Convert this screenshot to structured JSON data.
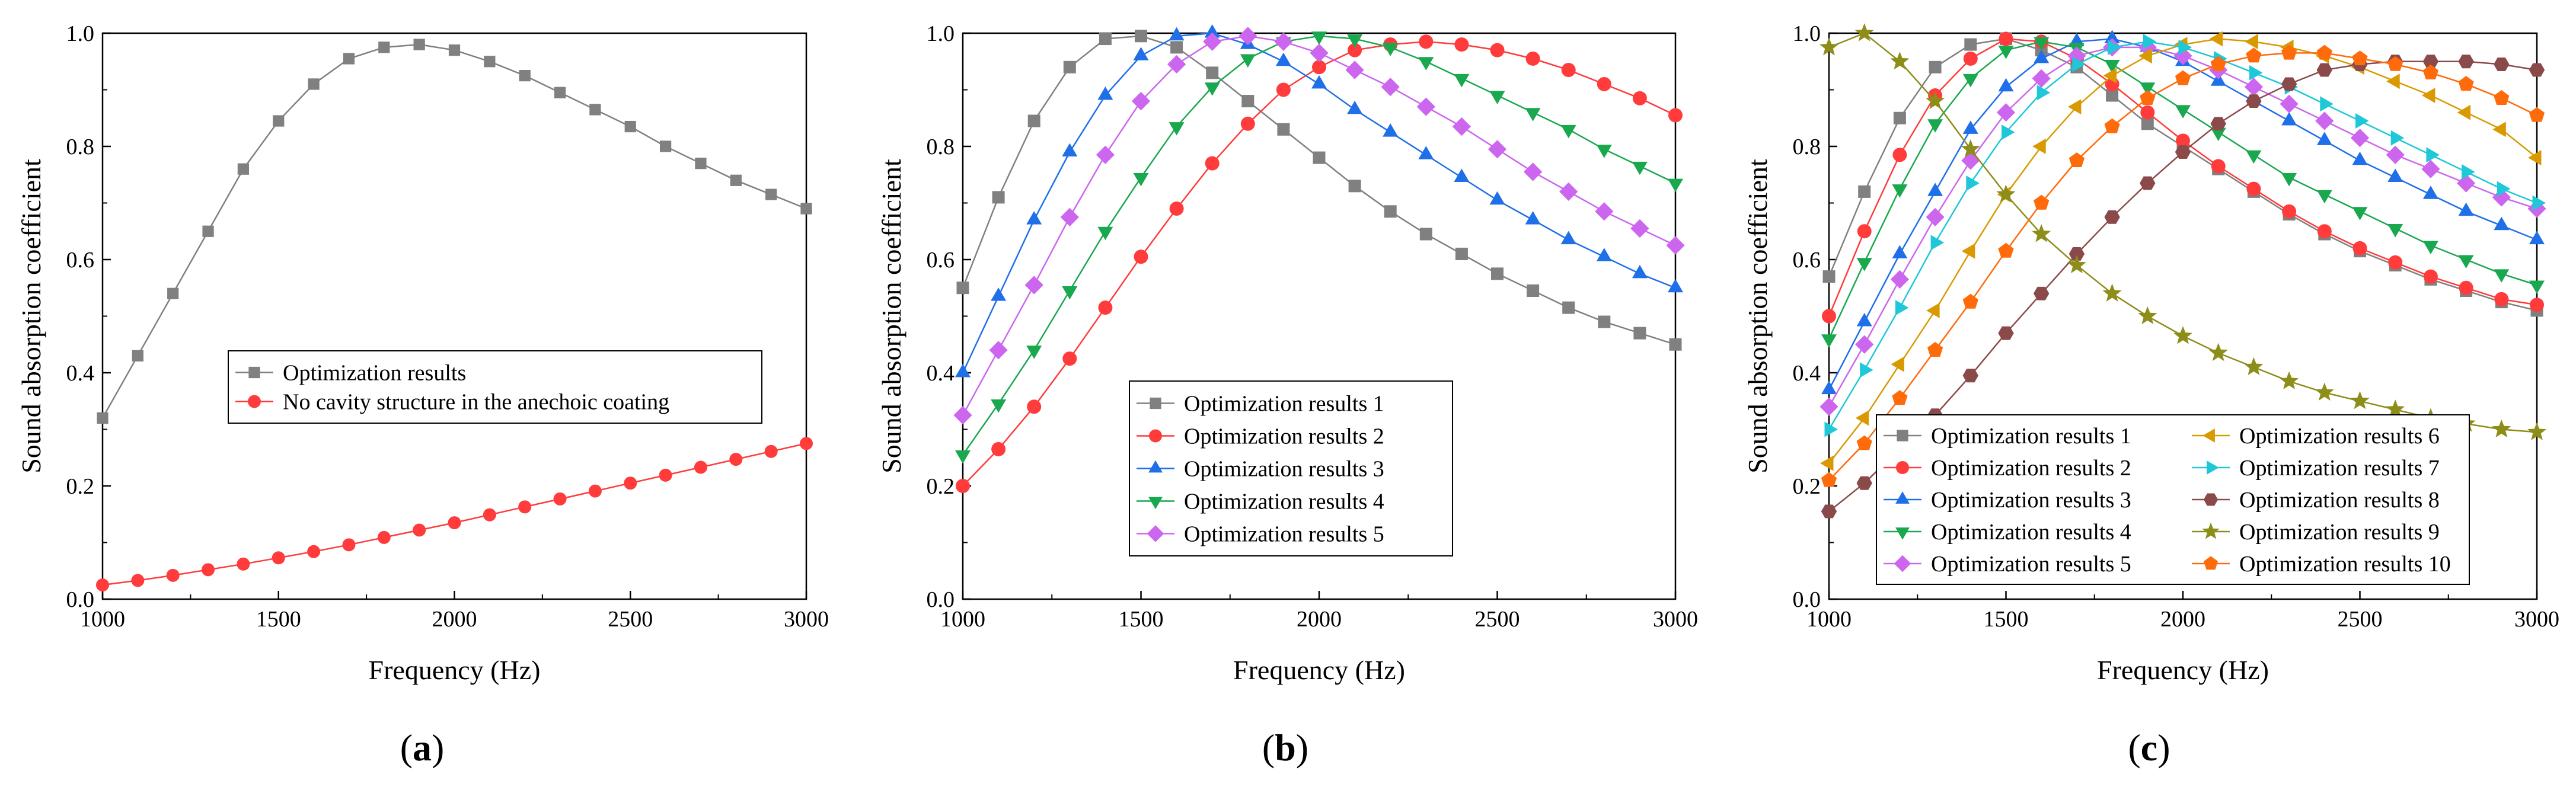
{
  "chart_data": [
    {
      "type": "line",
      "caption": "a",
      "xlabel": "Frequency (Hz)",
      "ylabel": "Sound absorption coefficient",
      "xlim": [
        1000,
        3000
      ],
      "ylim": [
        0.0,
        1.0
      ],
      "xticks": [
        "1000",
        "1500",
        "2000",
        "2500",
        "3000"
      ],
      "yticks": [
        "0.0",
        "0.2",
        "0.4",
        "0.6",
        "0.8",
        "1.0"
      ],
      "legend_position": "center",
      "x": [
        1000,
        1100,
        1200,
        1300,
        1400,
        1500,
        1600,
        1700,
        1800,
        1900,
        2000,
        2100,
        2200,
        2300,
        2400,
        2500,
        2600,
        2700,
        2800,
        2900,
        3000
      ],
      "series": [
        {
          "name": "Optimization results",
          "color": "#808080",
          "marker": "square",
          "values": [
            0.32,
            0.43,
            0.54,
            0.65,
            0.76,
            0.845,
            0.91,
            0.955,
            0.975,
            0.98,
            0.97,
            0.95,
            0.925,
            0.895,
            0.865,
            0.835,
            0.8,
            0.77,
            0.74,
            0.715,
            0.69
          ]
        },
        {
          "name": "No cavity structure in the anechoic coating",
          "color": "#ff3b3b",
          "marker": "circle",
          "values": [
            0.025,
            0.033,
            0.042,
            0.052,
            0.062,
            0.073,
            0.084,
            0.096,
            0.109,
            0.122,
            0.135,
            0.149,
            0.163,
            0.177,
            0.191,
            0.205,
            0.219,
            0.233,
            0.247,
            0.261,
            0.275
          ]
        }
      ]
    },
    {
      "type": "line",
      "caption": "b",
      "xlabel": "Frequency (Hz)",
      "ylabel": "Sound absorption coefficient",
      "xlim": [
        1000,
        3000
      ],
      "ylim": [
        0.0,
        1.0
      ],
      "xticks": [
        "1000",
        "1500",
        "2000",
        "2500",
        "3000"
      ],
      "yticks": [
        "0.0",
        "0.2",
        "0.4",
        "0.6",
        "0.8",
        "1.0"
      ],
      "legend_position": "lower-left",
      "x": [
        1000,
        1100,
        1200,
        1300,
        1400,
        1500,
        1600,
        1700,
        1800,
        1900,
        2000,
        2100,
        2200,
        2300,
        2400,
        2500,
        2600,
        2700,
        2800,
        2900,
        3000
      ],
      "series": [
        {
          "name": "Optimization results 1",
          "color": "#808080",
          "marker": "square",
          "values": [
            0.55,
            0.71,
            0.845,
            0.94,
            0.99,
            0.995,
            0.975,
            0.93,
            0.88,
            0.83,
            0.78,
            0.73,
            0.685,
            0.645,
            0.61,
            0.575,
            0.545,
            0.515,
            0.49,
            0.47,
            0.45
          ]
        },
        {
          "name": "Optimization results 2",
          "color": "#ff3b3b",
          "marker": "circle",
          "values": [
            0.2,
            0.265,
            0.34,
            0.425,
            0.515,
            0.605,
            0.69,
            0.77,
            0.84,
            0.9,
            0.94,
            0.97,
            0.98,
            0.985,
            0.98,
            0.97,
            0.955,
            0.935,
            0.91,
            0.885,
            0.855
          ]
        },
        {
          "name": "Optimization results 3",
          "color": "#1f6fe8",
          "marker": "triangle-up",
          "values": [
            0.4,
            0.535,
            0.67,
            0.79,
            0.89,
            0.96,
            0.995,
            1.0,
            0.98,
            0.95,
            0.91,
            0.865,
            0.825,
            0.785,
            0.745,
            0.705,
            0.67,
            0.635,
            0.605,
            0.575,
            0.55
          ]
        },
        {
          "name": "Optimization results 4",
          "color": "#1aa84f",
          "marker": "triangle-down",
          "values": [
            0.255,
            0.345,
            0.44,
            0.545,
            0.65,
            0.745,
            0.835,
            0.905,
            0.955,
            0.985,
            0.995,
            0.99,
            0.975,
            0.95,
            0.92,
            0.89,
            0.86,
            0.83,
            0.795,
            0.765,
            0.735
          ]
        },
        {
          "name": "Optimization results 5",
          "color": "#cc66ee",
          "marker": "diamond",
          "values": [
            0.325,
            0.44,
            0.555,
            0.675,
            0.785,
            0.88,
            0.945,
            0.985,
            0.995,
            0.985,
            0.965,
            0.935,
            0.905,
            0.87,
            0.835,
            0.795,
            0.755,
            0.72,
            0.685,
            0.655,
            0.625
          ]
        }
      ]
    },
    {
      "type": "line",
      "caption": "c",
      "xlabel": "Frequency (Hz)",
      "ylabel": "Sound absorption coefficient",
      "xlim": [
        1000,
        3000
      ],
      "ylim": [
        0.0,
        1.0
      ],
      "xticks": [
        "1000",
        "1500",
        "2000",
        "2500",
        "3000"
      ],
      "yticks": [
        "0.0",
        "0.2",
        "0.4",
        "0.6",
        "0.8",
        "1.0"
      ],
      "legend_position": "bottom",
      "legend_columns": 2,
      "x": [
        1000,
        1100,
        1200,
        1300,
        1400,
        1500,
        1600,
        1700,
        1800,
        1900,
        2000,
        2100,
        2200,
        2300,
        2400,
        2500,
        2600,
        2700,
        2800,
        2900,
        3000
      ],
      "series": [
        {
          "name": "Optimization results 1",
          "color": "#808080",
          "marker": "square",
          "values": [
            0.57,
            0.72,
            0.85,
            0.94,
            0.98,
            0.99,
            0.97,
            0.94,
            0.89,
            0.84,
            0.8,
            0.76,
            0.72,
            0.68,
            0.645,
            0.615,
            0.59,
            0.565,
            0.545,
            0.525,
            0.51
          ]
        },
        {
          "name": "Optimization results 2",
          "color": "#ff3b3b",
          "marker": "circle",
          "values": [
            0.5,
            0.65,
            0.785,
            0.89,
            0.955,
            0.99,
            0.985,
            0.955,
            0.91,
            0.86,
            0.81,
            0.765,
            0.725,
            0.685,
            0.65,
            0.62,
            0.595,
            0.57,
            0.55,
            0.53,
            0.52
          ]
        },
        {
          "name": "Optimization results 3",
          "color": "#1f6fe8",
          "marker": "triangle-up",
          "values": [
            0.37,
            0.49,
            0.61,
            0.72,
            0.83,
            0.905,
            0.955,
            0.985,
            0.99,
            0.975,
            0.95,
            0.915,
            0.88,
            0.845,
            0.81,
            0.775,
            0.745,
            0.715,
            0.685,
            0.66,
            0.635
          ]
        },
        {
          "name": "Optimization results 4",
          "color": "#1aa84f",
          "marker": "triangle-down",
          "values": [
            0.46,
            0.595,
            0.725,
            0.84,
            0.92,
            0.97,
            0.985,
            0.975,
            0.945,
            0.905,
            0.865,
            0.825,
            0.785,
            0.745,
            0.715,
            0.685,
            0.655,
            0.625,
            0.6,
            0.575,
            0.555
          ]
        },
        {
          "name": "Optimization results 5",
          "color": "#cc66ee",
          "marker": "diamond",
          "values": [
            0.34,
            0.45,
            0.565,
            0.675,
            0.775,
            0.86,
            0.92,
            0.96,
            0.975,
            0.975,
            0.96,
            0.935,
            0.905,
            0.875,
            0.845,
            0.815,
            0.785,
            0.76,
            0.735,
            0.71,
            0.69
          ]
        },
        {
          "name": "Optimization results 6",
          "color": "#d89a00",
          "marker": "triangle-left",
          "values": [
            0.24,
            0.32,
            0.415,
            0.51,
            0.615,
            0.715,
            0.8,
            0.87,
            0.925,
            0.96,
            0.98,
            0.99,
            0.985,
            0.975,
            0.96,
            0.94,
            0.915,
            0.89,
            0.86,
            0.83,
            0.78
          ]
        },
        {
          "name": "Optimization results 7",
          "color": "#1ec8d8",
          "marker": "triangle-right",
          "values": [
            0.3,
            0.405,
            0.515,
            0.63,
            0.735,
            0.825,
            0.895,
            0.945,
            0.975,
            0.985,
            0.975,
            0.955,
            0.93,
            0.905,
            0.875,
            0.845,
            0.815,
            0.785,
            0.755,
            0.725,
            0.7
          ]
        },
        {
          "name": "Optimization results 8",
          "color": "#8b4a4a",
          "marker": "hexagon",
          "values": [
            0.155,
            0.205,
            0.265,
            0.325,
            0.395,
            0.47,
            0.54,
            0.61,
            0.675,
            0.735,
            0.79,
            0.84,
            0.88,
            0.91,
            0.935,
            0.945,
            0.95,
            0.95,
            0.95,
            0.945,
            0.935
          ]
        },
        {
          "name": "Optimization results 9",
          "color": "#8d8d1a",
          "marker": "star",
          "values": [
            0.975,
            1.0,
            0.95,
            0.88,
            0.795,
            0.715,
            0.645,
            0.59,
            0.54,
            0.5,
            0.465,
            0.435,
            0.41,
            0.385,
            0.365,
            0.35,
            0.335,
            0.32,
            0.31,
            0.3,
            0.295
          ]
        },
        {
          "name": "Optimization results 10",
          "color": "#ff6a0a",
          "marker": "pentagon",
          "values": [
            0.21,
            0.275,
            0.355,
            0.44,
            0.525,
            0.615,
            0.7,
            0.775,
            0.835,
            0.885,
            0.92,
            0.945,
            0.96,
            0.965,
            0.965,
            0.955,
            0.945,
            0.93,
            0.91,
            0.885,
            0.855
          ]
        }
      ]
    }
  ]
}
